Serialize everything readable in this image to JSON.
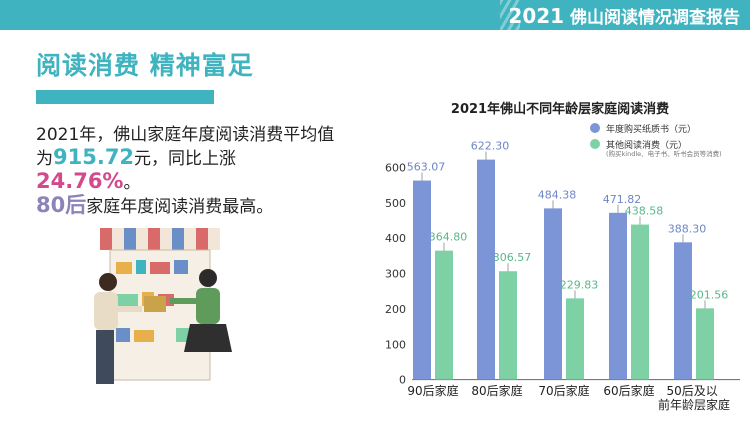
{
  "header": {
    "year": "2021",
    "title": "佛山阅读情况调查报告"
  },
  "section": {
    "heading": "阅读消费  精神富足"
  },
  "summary": {
    "line1": "2021年，佛山家庭年度阅读消费平均值",
    "line2_pre": "为",
    "avg_value": "915.72",
    "line2_mid": "元，同比上涨",
    "growth": "24.76%",
    "line2_post": "。",
    "line3_group": "80后",
    "line3_rest": "家庭年度阅读消费最高。"
  },
  "colors": {
    "accent": "#3fb3bf",
    "pink": "#d24a8c",
    "purple": "#8a84b8",
    "series_paper": "#7b95d6",
    "series_other": "#7dd1a5"
  },
  "chart_data": {
    "type": "bar",
    "title": "2021年佛山不同年龄层家庭阅读消费",
    "categories": [
      "90后家庭",
      "80后家庭",
      "70后家庭",
      "60后家庭",
      "50后及以前年龄层家庭"
    ],
    "series": [
      {
        "name": "年度购买纸质书（元）",
        "values": [
          563.07,
          622.3,
          484.38,
          471.82,
          388.3
        ],
        "color": "#7b95d6"
      },
      {
        "name": "其他阅读消费（元）",
        "note": "(购买kindle、电子书、听书会员等消费)",
        "values": [
          364.8,
          306.57,
          229.83,
          438.58,
          201.56
        ],
        "color": "#7dd1a5"
      }
    ],
    "value_labels_paper": [
      "563.07",
      "622.30",
      "484.38",
      "471.82",
      "388.30"
    ],
    "value_labels_other": [
      "364.80",
      "306.57",
      "229.83",
      "438.58",
      "201.56"
    ],
    "yticks": [
      "0",
      "100",
      "200",
      "300",
      "400",
      "500",
      "600"
    ],
    "ylim": [
      0,
      650
    ],
    "legend_position": "top-right",
    "grid": false
  }
}
